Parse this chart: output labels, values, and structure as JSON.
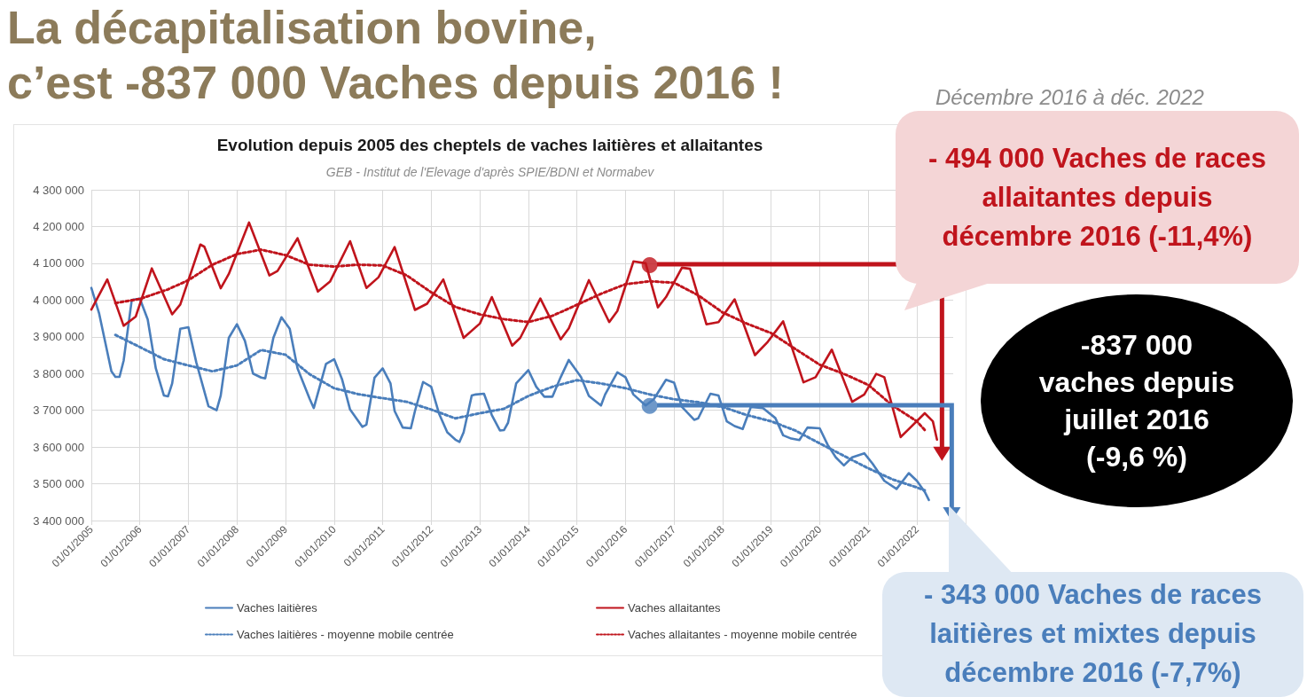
{
  "chart_data": {
    "type": "line",
    "title": "La décapitalisation bovine, c’est -837 000 Vaches depuis 2016 !",
    "subtitle": "Evolution depuis 2005 des cheptels de vaches laitières et allaitantes",
    "annotations": [
      "Décembre 2016 à déc. 2022",
      "GEB - Institut de l'Elevage d'après SPIE/BDNI et Normabev",
      "- 494 000 Vaches de races allaitantes depuis décembre 2016 (-11,4%)",
      "- 343 000 Vaches de races laitières et mixtes depuis décembre 2016 (-7,7%)",
      "-837 000 vaches depuis juillet 2016 (-9,6 %)"
    ],
    "xlim": [
      "2005-01-01",
      "2022-10-01"
    ],
    "xticks": [
      {
        "value": "2005-01-01",
        "label": "01/01/2005"
      },
      {
        "value": "2006-01-01",
        "label": "01/01/2006"
      },
      {
        "value": "2007-01-01",
        "label": "01/01/2007"
      },
      {
        "value": "2008-01-01",
        "label": "01/01/2008"
      },
      {
        "value": "2009-01-01",
        "label": "01/01/2009"
      },
      {
        "value": "2010-01-01",
        "label": "01/01/2010"
      },
      {
        "value": "2011-01-01",
        "label": "01/01/2011"
      },
      {
        "value": "2012-01-01",
        "label": "01/01/2012"
      },
      {
        "value": "2013-01-01",
        "label": "01/01/2013"
      },
      {
        "value": "2014-01-01",
        "label": "01/01/2014"
      },
      {
        "value": "2015-01-01",
        "label": "01/01/2015"
      },
      {
        "value": "2016-01-01",
        "label": "01/01/2016"
      },
      {
        "value": "2017-01-01",
        "label": "01/01/2017"
      },
      {
        "value": "2018-01-01",
        "label": "01/01/2018"
      },
      {
        "value": "2019-01-01",
        "label": "01/01/2019"
      },
      {
        "value": "2020-01-01",
        "label": "01/01/2020"
      },
      {
        "value": "2021-01-01",
        "label": "01/01/2021"
      },
      {
        "value": "2022-01-01",
        "label": "01/01/2022"
      }
    ],
    "ylim": [
      3400000,
      4300000
    ],
    "yticks": [
      {
        "value": 3400000,
        "label": "3 400 000"
      },
      {
        "value": 3500000,
        "label": "3 500 000"
      },
      {
        "value": 3600000,
        "label": "3 600 000"
      },
      {
        "value": 3700000,
        "label": "3 700 000"
      },
      {
        "value": 3800000,
        "label": "3 800 000"
      },
      {
        "value": 3900000,
        "label": "3 900 000"
      },
      {
        "value": 4000000,
        "label": "4 000 000"
      },
      {
        "value": 4100000,
        "label": "4 100 000"
      },
      {
        "value": 4200000,
        "label": "4 200 000"
      },
      {
        "value": 4300000,
        "label": "4 300 000"
      }
    ],
    "grid": true,
    "legend": "bottom",
    "marker": "none",
    "series": [
      {
        "type": "scatter",
        "marker": "circle",
        "x": [
          "2016-07",
          "2016-07"
        ],
        "values": [
          4095000,
          3712000
        ],
        "colors": [
          "#c0141c",
          "#4a7ebb"
        ]
      },
      {
        "name": "Vaches laitières",
        "color": "#4a7ebb",
        "line_style": "solid",
        "x": [
          "2005-01",
          "2005-03",
          "2005-06",
          "2005-07",
          "2005-08",
          "2005-09",
          "2005-11",
          "2006-01",
          "2006-03",
          "2006-05",
          "2006-07",
          "2006-08",
          "2006-09",
          "2006-11",
          "2007-01",
          "2007-03",
          "2007-06",
          "2007-08",
          "2007-09",
          "2007-11",
          "2008-01",
          "2008-03",
          "2008-05",
          "2008-07",
          "2008-08",
          "2008-10",
          "2008-12",
          "2009-02",
          "2009-04",
          "2009-07",
          "2009-08",
          "2009-11",
          "2010-01",
          "2010-03",
          "2010-05",
          "2010-08",
          "2010-09",
          "2010-11",
          "2011-01",
          "2011-03",
          "2011-04",
          "2011-06",
          "2011-08",
          "2011-09",
          "2011-11",
          "2012-01",
          "2012-03",
          "2012-05",
          "2012-07",
          "2012-08",
          "2012-09",
          "2012-11",
          "2012-12",
          "2013-02",
          "2013-04",
          "2013-06",
          "2013-07",
          "2013-08",
          "2013-10",
          "2014-01",
          "2014-03",
          "2014-05",
          "2014-07",
          "2014-09",
          "2014-11",
          "2015-02",
          "2015-04",
          "2015-07",
          "2015-08",
          "2015-11",
          "2016-01",
          "2016-03",
          "2016-06",
          "2016-08",
          "2016-11",
          "2017-01",
          "2017-03",
          "2017-06",
          "2017-07",
          "2017-10",
          "2017-12",
          "2018-02",
          "2018-04",
          "2018-06",
          "2018-08",
          "2018-11",
          "2019-02",
          "2019-04",
          "2019-06",
          "2019-08",
          "2019-10",
          "2020-01",
          "2020-03",
          "2020-05",
          "2020-07",
          "2020-09",
          "2020-12",
          "2021-02",
          "2021-05",
          "2021-08",
          "2021-11",
          "2022-01",
          "2022-03",
          "2022-04"
        ],
        "values": [
          4033000,
          3963000,
          3806000,
          3791000,
          3791000,
          3835000,
          4000000,
          4004000,
          3947000,
          3814000,
          3740000,
          3738000,
          3773000,
          3922000,
          3926000,
          3831000,
          3711000,
          3700000,
          3740000,
          3897000,
          3934000,
          3889000,
          3800000,
          3789000,
          3787000,
          3897000,
          3953000,
          3922000,
          3814000,
          3731000,
          3706000,
          3826000,
          3839000,
          3785000,
          3702000,
          3655000,
          3661000,
          3789000,
          3814000,
          3773000,
          3698000,
          3653000,
          3651000,
          3698000,
          3777000,
          3764000,
          3690000,
          3640000,
          3620000,
          3614000,
          3640000,
          3740000,
          3743000,
          3745000,
          3687000,
          3645000,
          3646000,
          3666000,
          3773000,
          3809000,
          3764000,
          3737000,
          3737000,
          3790000,
          3837000,
          3790000,
          3739000,
          3713000,
          3743000,
          3803000,
          3790000,
          3743000,
          3713000,
          3730000,
          3783000,
          3775000,
          3709000,
          3674000,
          3678000,
          3745000,
          3740000,
          3670000,
          3657000,
          3649000,
          3709000,
          3706000,
          3679000,
          3632000,
          3623000,
          3619000,
          3653000,
          3651000,
          3606000,
          3572000,
          3550000,
          3572000,
          3583000,
          3555000,
          3508000,
          3486000,
          3529000,
          3508000,
          3478000,
          3456000
        ]
      },
      {
        "name": "Vaches allaitantes",
        "color": "#c0141c",
        "line_style": "solid",
        "x": [
          "2005-01",
          "2005-05",
          "2005-09",
          "2005-12",
          "2006-04",
          "2006-09",
          "2006-11",
          "2007-04",
          "2007-05",
          "2007-09",
          "2007-11",
          "2008-04",
          "2008-09",
          "2008-11",
          "2009-04",
          "2009-09",
          "2009-12",
          "2010-05",
          "2010-09",
          "2010-12",
          "2011-04",
          "2011-09",
          "2011-12",
          "2012-04",
          "2012-09",
          "2013-01",
          "2013-04",
          "2013-09",
          "2013-11",
          "2014-04",
          "2014-09",
          "2014-11",
          "2015-04",
          "2015-09",
          "2015-11",
          "2016-03",
          "2016-06",
          "2016-09",
          "2016-11",
          "2017-03",
          "2017-05",
          "2017-09",
          "2017-12",
          "2018-04",
          "2018-09",
          "2018-12",
          "2019-04",
          "2019-09",
          "2019-12",
          "2020-04",
          "2020-09",
          "2020-12",
          "2021-03",
          "2021-05",
          "2021-09",
          "2021-11",
          "2022-03",
          "2022-05",
          "2022-06"
        ],
        "values": [
          3974000,
          4056000,
          3930000,
          3955000,
          4086000,
          3961000,
          3988000,
          4151000,
          4145000,
          4032000,
          4071000,
          4211000,
          4067000,
          4079000,
          4168000,
          4023000,
          4050000,
          4160000,
          4033000,
          4062000,
          4144000,
          3973000,
          3990000,
          4056000,
          3897000,
          3936000,
          4008000,
          3876000,
          3897000,
          4004000,
          3893000,
          3923000,
          4054000,
          3940000,
          3970000,
          4105000,
          4100000,
          3980000,
          4008000,
          4088000,
          4085000,
          3934000,
          3940000,
          4002000,
          3850000,
          3884000,
          3942000,
          3776000,
          3790000,
          3865000,
          3723000,
          3743000,
          3799000,
          3790000,
          3627000,
          3649000,
          3692000,
          3670000,
          3620000
        ]
      },
      {
        "name": "Vaches laitières - moyenne mobile centrée",
        "color": "#4a7ebb",
        "line_style": "dotted",
        "x": [
          "2005-07",
          "2006-01",
          "2006-07",
          "2007-01",
          "2007-07",
          "2008-01",
          "2008-07",
          "2009-01",
          "2009-07",
          "2010-01",
          "2010-07",
          "2011-01",
          "2011-07",
          "2012-01",
          "2012-07",
          "2013-01",
          "2013-07",
          "2014-01",
          "2014-07",
          "2015-01",
          "2015-07",
          "2016-01",
          "2016-07",
          "2017-01",
          "2017-07",
          "2018-01",
          "2018-07",
          "2019-01",
          "2019-07",
          "2020-01",
          "2020-07",
          "2021-01",
          "2021-07",
          "2022-01",
          "2022-03"
        ],
        "values": [
          3905000,
          3872000,
          3839000,
          3822000,
          3806000,
          3822000,
          3864000,
          3851000,
          3798000,
          3760000,
          3744000,
          3733000,
          3723000,
          3702000,
          3678000,
          3692000,
          3704000,
          3739000,
          3764000,
          3782000,
          3773000,
          3760000,
          3743000,
          3730000,
          3722000,
          3709000,
          3687000,
          3670000,
          3645000,
          3610000,
          3576000,
          3542000,
          3512000,
          3490000,
          3482000
        ]
      },
      {
        "name": "Vaches allaitantes - moyenne mobile centrée",
        "color": "#c0141c",
        "line_style": "dotted",
        "x": [
          "2005-07",
          "2006-01",
          "2006-08",
          "2007-01",
          "2007-07",
          "2008-01",
          "2008-07",
          "2009-01",
          "2009-07",
          "2010-01",
          "2010-07",
          "2011-01",
          "2011-07",
          "2012-01",
          "2012-07",
          "2013-01",
          "2013-07",
          "2014-01",
          "2014-07",
          "2015-01",
          "2015-07",
          "2016-01",
          "2016-07",
          "2017-01",
          "2017-07",
          "2018-01",
          "2018-07",
          "2019-01",
          "2019-07",
          "2020-01",
          "2020-07",
          "2021-01",
          "2021-07",
          "2022-01",
          "2022-03"
        ],
        "values": [
          3992000,
          4003000,
          4029000,
          4054000,
          4096000,
          4125000,
          4137000,
          4122000,
          4096000,
          4091000,
          4096000,
          4094000,
          4067000,
          4021000,
          3981000,
          3961000,
          3948000,
          3940000,
          3957000,
          3987000,
          4017000,
          4043000,
          4051000,
          4047000,
          4013000,
          3966000,
          3936000,
          3910000,
          3867000,
          3824000,
          3799000,
          3769000,
          3713000,
          3670000,
          3646000
        ]
      }
    ]
  }
}
